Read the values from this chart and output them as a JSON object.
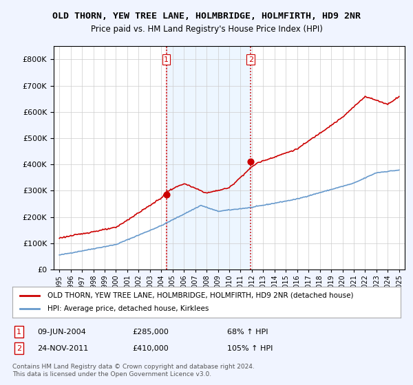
{
  "title": "OLD THORN, YEW TREE LANE, HOLMBRIDGE, HOLMFIRTH, HD9 2NR",
  "subtitle": "Price paid vs. HM Land Registry's House Price Index (HPI)",
  "legend_label_red": "OLD THORN, YEW TREE LANE, HOLMBRIDGE, HOLMFIRTH, HD9 2NR (detached house)",
  "legend_label_blue": "HPI: Average price, detached house, Kirklees",
  "sale1_label": "1",
  "sale1_date": "09-JUN-2004",
  "sale1_price": "£285,000",
  "sale1_hpi": "68% ↑ HPI",
  "sale2_label": "2",
  "sale2_date": "24-NOV-2011",
  "sale2_price": "£410,000",
  "sale2_hpi": "105% ↑ HPI",
  "footnote": "Contains HM Land Registry data © Crown copyright and database right 2024.\nThis data is licensed under the Open Government Licence v3.0.",
  "background_color": "#f0f4ff",
  "plot_background": "#ffffff",
  "red_color": "#cc0000",
  "blue_color": "#6699cc",
  "sale1_x": 2004.44,
  "sale1_y": 285000,
  "sale2_x": 2011.9,
  "sale2_y": 410000,
  "vline1_x": 2004.44,
  "vline2_x": 2011.9,
  "ylim": [
    0,
    850000
  ],
  "xlim": [
    1994.5,
    2025.5
  ]
}
